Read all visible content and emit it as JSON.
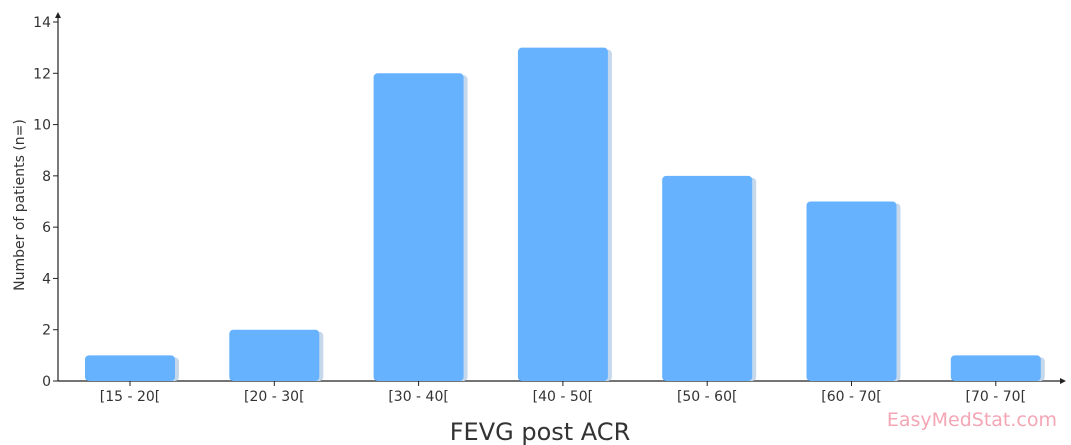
{
  "chart_data": {
    "type": "bar",
    "title": "",
    "xlabel": "FEVG post ACR",
    "ylabel": "Number of patients (n=)",
    "categories": [
      "[15 - 20[",
      "[20 - 30[",
      "[30 - 40[",
      "[40 - 50[",
      "[50 - 60[",
      "[60 - 70[",
      "[70 - 70["
    ],
    "values": [
      1,
      2,
      12,
      13,
      8,
      7,
      1
    ],
    "ylim": [
      0,
      14
    ],
    "yticks": [
      0,
      2,
      4,
      6,
      8,
      10,
      12,
      14
    ],
    "grid": false,
    "bar_color": "#66b2ff",
    "bar_shadow_color": "#c6d9ec"
  },
  "watermark": "EasyMedStat.com"
}
